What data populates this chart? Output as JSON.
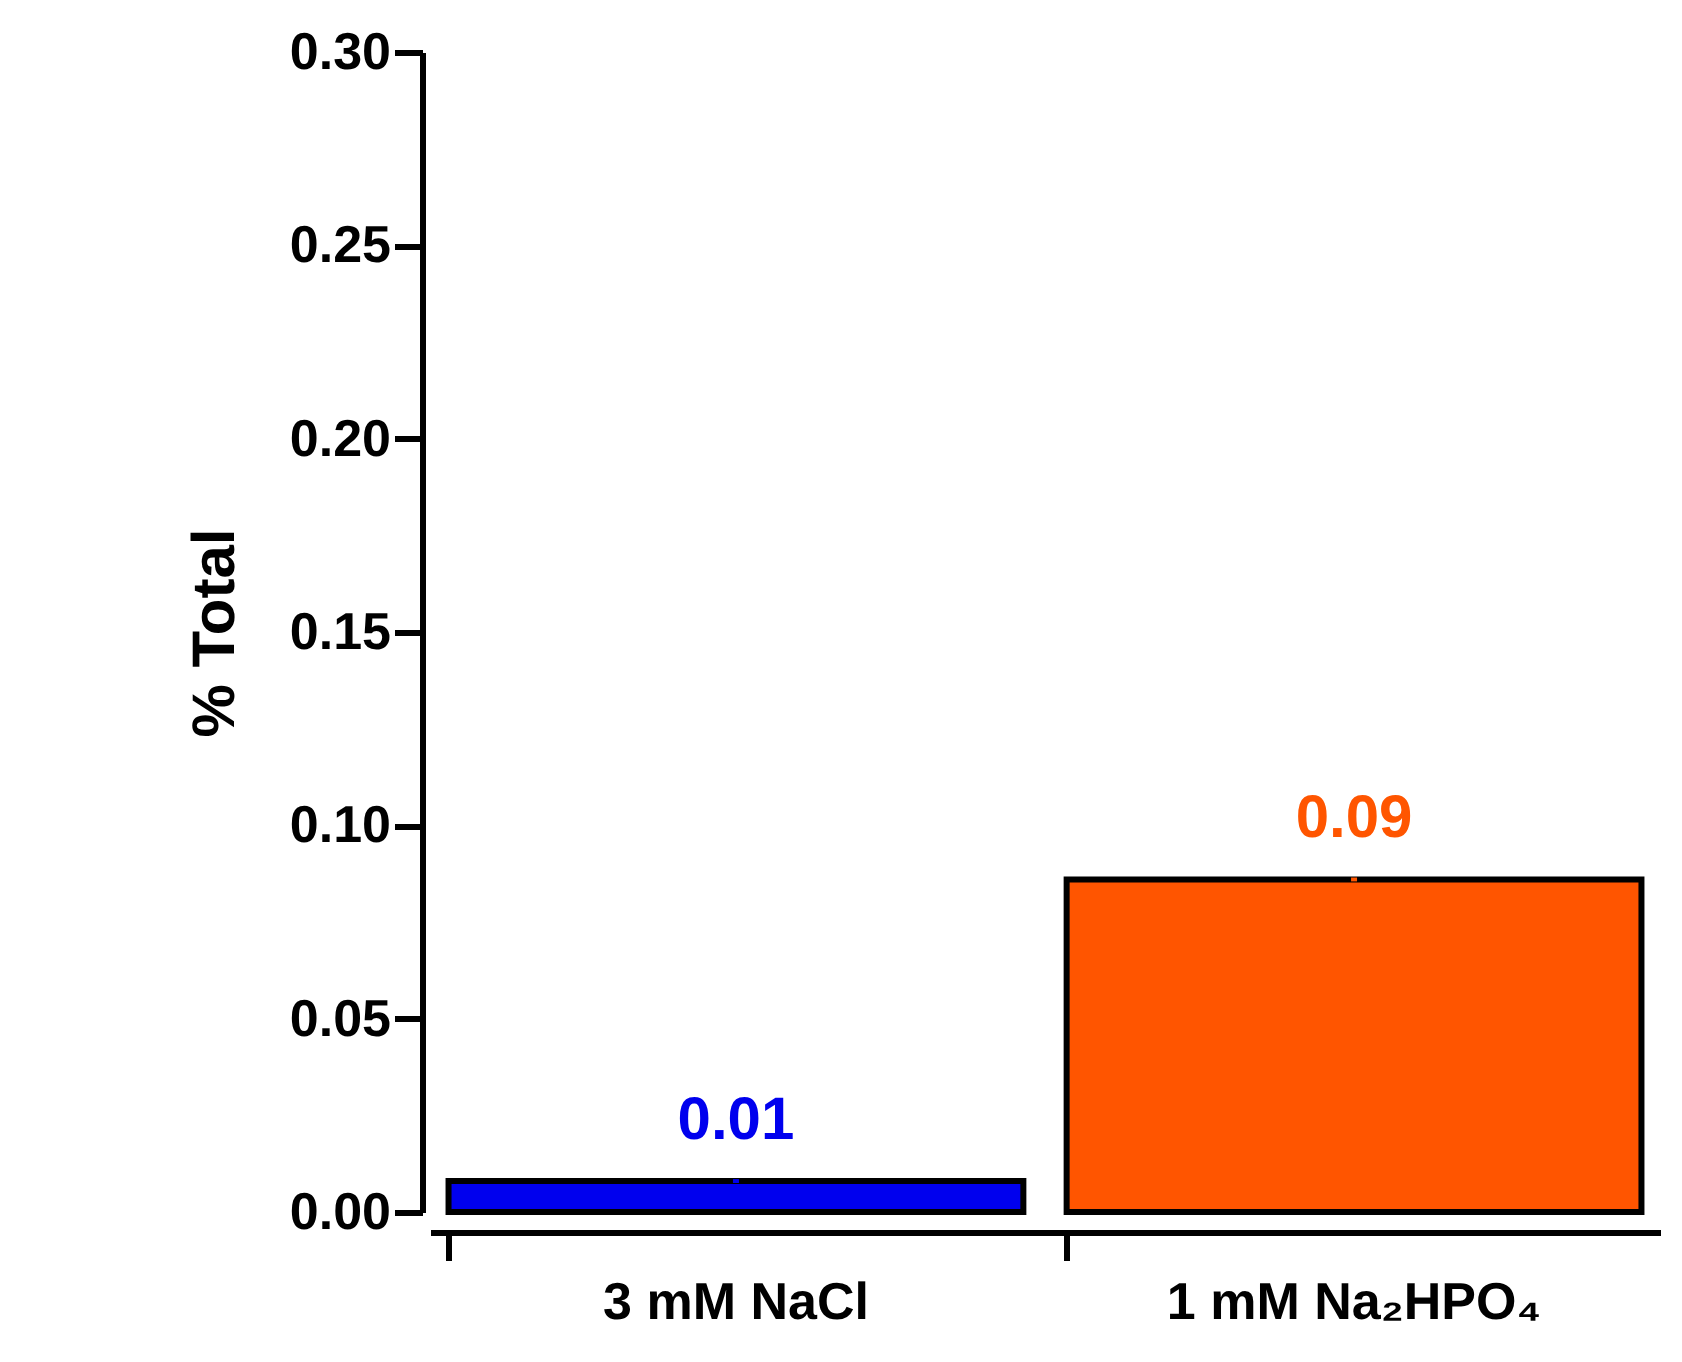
{
  "chart_data": {
    "type": "bar",
    "ylabel": "% Total",
    "categories": [
      "3 mM NaCl",
      "1 mM Na₂HPO₄"
    ],
    "values": [
      0.008,
      0.086
    ],
    "colors": [
      "#0000ee",
      "#ff5500"
    ],
    "errors": [
      0.0005,
      0.0005
    ],
    "value_labels": [
      "0.01",
      "0.09"
    ],
    "ylim": [
      0,
      0.3
    ],
    "yticks": [
      {
        "value": 0,
        "label": "0.00"
      },
      {
        "value": 0.05,
        "label": "0.05"
      },
      {
        "value": 0.1,
        "label": "0.10"
      },
      {
        "value": 0.15,
        "label": "0.15"
      },
      {
        "value": 0.2,
        "label": "0.20"
      },
      {
        "value": 0.25,
        "label": "0.25"
      },
      {
        "value": 0.3,
        "label": "0.30"
      }
    ],
    "grid": false
  }
}
